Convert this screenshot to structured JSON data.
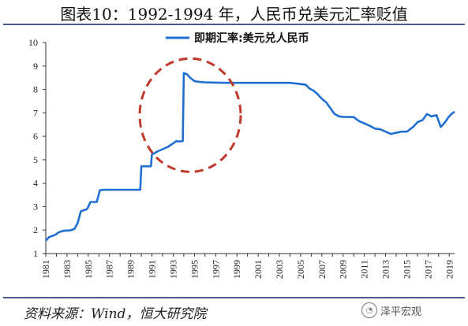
{
  "title": "图表10：1992-1994 年，人民币兑美元汇率贬值",
  "source": "资料来源：Wind，恒大研究院",
  "watermark": {
    "text": "泽平宏观",
    "icon": "wechat-icon"
  },
  "colors": {
    "line": "#1f6fd2",
    "annotation": "#c0392b",
    "rule": "#4a5a8a"
  },
  "chart_data": {
    "type": "line",
    "legend": {
      "placement": "top-center"
    },
    "grid": false,
    "ylim": [
      1,
      10
    ],
    "yticks": [
      1,
      2,
      3,
      4,
      5,
      6,
      7,
      8,
      9,
      10
    ],
    "xlim": [
      1981,
      2019.5
    ],
    "xticks": [
      "1981",
      "1983",
      "1985",
      "1987",
      "1989",
      "1991",
      "1993",
      "1995",
      "1997",
      "1999",
      "2001",
      "2003",
      "2005",
      "2007",
      "2009",
      "2011",
      "2013",
      "2015",
      "2017",
      "2019"
    ],
    "annotation": {
      "type": "dashed-circle",
      "x_center": 1994.6,
      "y_center": 6.9,
      "color": "#c0392b"
    },
    "series": [
      {
        "name": "即期汇率:美元兑人民币",
        "x": [
          1981.0,
          1981.3,
          1981.6,
          1981.9,
          1982.2,
          1982.5,
          1982.8,
          1983.1,
          1983.4,
          1983.7,
          1984.0,
          1984.3,
          1984.6,
          1984.9,
          1985.2,
          1985.5,
          1985.8,
          1986.1,
          1986.4,
          1986.5,
          1986.6,
          1989.9,
          1990.0,
          1990.9,
          1991.0,
          1991.5,
          1992.0,
          1992.5,
          1993.0,
          1993.3,
          1993.6,
          1993.9,
          1994.0,
          1994.3,
          1994.6,
          1995.0,
          1995.5,
          1996.0,
          1997.0,
          1998.0,
          2000.0,
          2002.0,
          2004.0,
          2005.5,
          2005.8,
          2006.2,
          2006.6,
          2007.0,
          2007.4,
          2007.8,
          2008.2,
          2008.6,
          2009.0,
          2010.0,
          2010.5,
          2011.0,
          2011.5,
          2012.0,
          2012.5,
          2013.0,
          2013.5,
          2014.0,
          2014.5,
          2015.0,
          2015.6,
          2016.0,
          2016.5,
          2016.9,
          2017.3,
          2017.8,
          2018.2,
          2018.6,
          2018.9,
          2019.2,
          2019.5
        ],
        "values": [
          1.55,
          1.7,
          1.75,
          1.8,
          1.9,
          1.95,
          1.98,
          1.98,
          2.0,
          2.05,
          2.3,
          2.8,
          2.85,
          2.9,
          3.2,
          3.2,
          3.2,
          3.7,
          3.72,
          3.72,
          3.72,
          3.72,
          4.72,
          4.72,
          5.22,
          5.35,
          5.45,
          5.55,
          5.7,
          5.8,
          5.78,
          5.8,
          8.7,
          8.65,
          8.5,
          8.35,
          8.32,
          8.3,
          8.29,
          8.28,
          8.28,
          8.28,
          8.28,
          8.2,
          8.05,
          7.95,
          7.8,
          7.6,
          7.45,
          7.2,
          6.95,
          6.85,
          6.83,
          6.82,
          6.65,
          6.55,
          6.45,
          6.33,
          6.3,
          6.2,
          6.1,
          6.15,
          6.2,
          6.2,
          6.4,
          6.6,
          6.7,
          6.95,
          6.85,
          6.9,
          6.4,
          6.6,
          6.8,
          6.95,
          7.05
        ]
      }
    ]
  }
}
